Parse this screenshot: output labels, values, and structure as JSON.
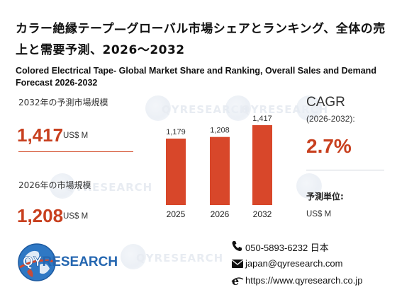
{
  "title_ja": "カラー絶縁テープ—グローバル市場シェアとランキング、全体の売上と需要予測、2026〜2032",
  "title_en": "Colored Electrical Tape- Global Market Share and Ranking, Overall Sales and Demand Forecast 2026-2032",
  "market_2032": {
    "label": "2032年の予測市場規模",
    "value": "1,417",
    "unit": "US$ M"
  },
  "market_2026": {
    "label": "2026年の市場規模",
    "value": "1,208",
    "unit": "US$ M"
  },
  "cagr": {
    "label": "CAGR",
    "period": "(2026-2032):",
    "value": "2.7%"
  },
  "forecast_unit": {
    "label": "予測単位:",
    "value": "US$ M"
  },
  "logo": {
    "brand_q": "Q",
    "brand_y": "Y",
    "brand_rest": "RESEARCH"
  },
  "contact": {
    "phone": "050-5893-6232 日本",
    "email": "japan@qyresearch.com",
    "website": "https://www.qyresearch.co.jp"
  },
  "colors": {
    "accent": "#d8472a",
    "value_text": "#c8401f"
  },
  "chart_data": {
    "type": "bar",
    "categories": [
      "2025",
      "2026",
      "2032"
    ],
    "values": [
      1179,
      1208,
      1417
    ],
    "value_labels": [
      "1,179",
      "1,208",
      "1,417"
    ],
    "title": "",
    "xlabel": "",
    "ylabel": "",
    "ylim": [
      0,
      1500
    ],
    "grid": false,
    "legend": "none"
  }
}
